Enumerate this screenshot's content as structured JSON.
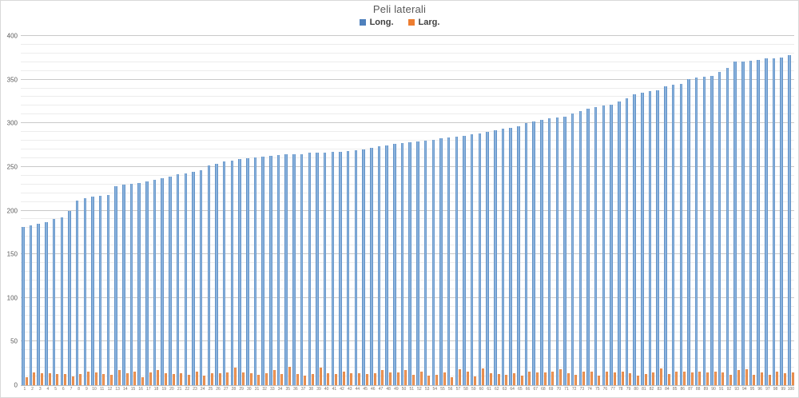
{
  "chart": {
    "title": "Peli laterali",
    "legend": [
      {
        "label": "Long.",
        "color": "#4f81bd"
      },
      {
        "label": "Larg.",
        "color": "#ed7d31"
      }
    ],
    "colors": {
      "series_long": "#4f81bd",
      "series_larg": "#ed7d31",
      "title_text": "#595959",
      "axis_text": "#595959",
      "major_gridline": "#c9c9c9",
      "minor_gridline": "#ececec"
    }
  },
  "chart_data": {
    "type": "bar",
    "title": "Peli laterali",
    "xlabel": "",
    "ylabel": "",
    "ylim": [
      0,
      400
    ],
    "y_major_step": 50,
    "y_minor_step": 10,
    "y_ticks": [
      0,
      50,
      100,
      150,
      200,
      250,
      300,
      350,
      400
    ],
    "grid": true,
    "legend_position": "top",
    "categories": [
      1,
      2,
      3,
      4,
      5,
      6,
      7,
      8,
      9,
      10,
      11,
      12,
      13,
      14,
      15,
      16,
      17,
      18,
      19,
      20,
      21,
      22,
      23,
      24,
      25,
      26,
      27,
      28,
      29,
      30,
      31,
      32,
      33,
      34,
      35,
      36,
      37,
      38,
      39,
      40,
      41,
      42,
      43,
      44,
      45,
      46,
      47,
      48,
      49,
      50,
      51,
      52,
      53,
      54,
      55,
      56,
      57,
      58,
      59,
      60,
      61,
      62,
      63,
      64,
      65,
      66,
      67,
      68,
      69,
      70,
      71,
      72,
      73,
      74,
      75,
      76,
      77,
      78,
      79,
      80,
      81,
      82,
      83,
      84,
      85,
      86,
      87,
      88,
      89,
      90,
      91,
      92,
      93,
      94,
      95,
      96,
      97,
      98,
      99,
      100
    ],
    "series": [
      {
        "name": "Long.",
        "values": [
          181,
          183,
          185,
          187,
          190,
          192,
          200,
          211,
          214,
          216,
          217,
          218,
          228,
          230,
          231,
          232,
          233,
          235,
          237,
          239,
          242,
          243,
          244,
          246,
          252,
          254,
          256,
          257,
          259,
          260,
          261,
          262,
          263,
          264,
          265,
          265,
          265,
          266,
          266,
          266,
          267,
          267,
          268,
          269,
          270,
          272,
          274,
          275,
          276,
          277,
          278,
          279,
          280,
          281,
          283,
          284,
          285,
          286,
          287,
          288,
          290,
          292,
          294,
          295,
          297,
          300,
          302,
          304,
          306,
          307,
          308,
          311,
          314,
          317,
          319,
          320,
          321,
          325,
          329,
          333,
          335,
          337,
          338,
          342,
          344,
          345,
          351,
          352,
          353,
          354,
          359,
          363,
          371,
          371,
          372,
          373,
          374,
          374,
          375,
          378
        ]
      },
      {
        "name": "Larg.",
        "values": [
          9,
          15,
          14,
          14,
          13,
          13,
          10,
          13,
          16,
          15,
          13,
          12,
          17,
          14,
          16,
          9,
          15,
          17,
          14,
          13,
          14,
          12,
          16,
          11,
          14,
          14,
          15,
          20,
          15,
          14,
          12,
          14,
          17,
          13,
          21,
          13,
          11,
          13,
          20,
          14,
          13,
          16,
          14,
          14,
          13,
          14,
          17,
          15,
          15,
          17,
          12,
          16,
          11,
          12,
          15,
          9,
          18,
          16,
          10,
          19,
          14,
          13,
          12,
          14,
          11,
          16,
          15,
          15,
          16,
          18,
          14,
          12,
          16,
          16,
          11,
          16,
          15,
          16,
          14,
          11,
          13,
          15,
          19,
          13,
          16,
          16,
          15,
          16,
          15,
          16,
          15,
          12,
          17,
          18,
          12,
          15,
          12,
          16,
          14,
          15
        ]
      }
    ]
  }
}
